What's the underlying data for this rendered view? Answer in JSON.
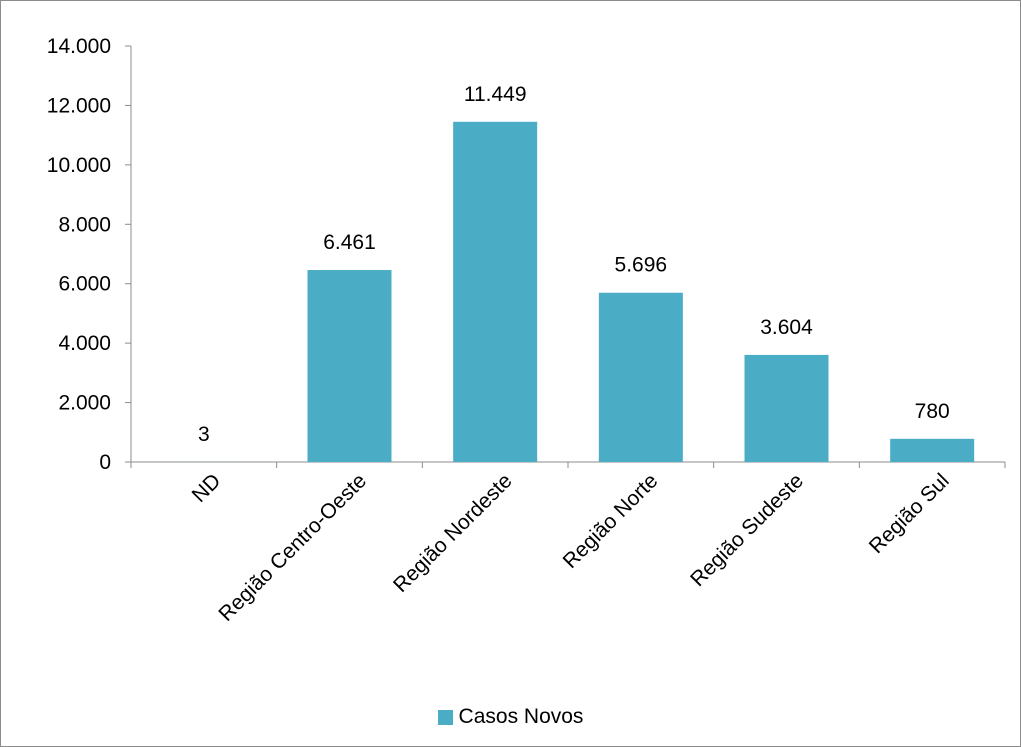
{
  "chart_data": {
    "type": "bar",
    "categories": [
      "ND",
      "Região Centro-Oeste",
      "Região Nordeste",
      "Região Norte",
      "Região Sudeste",
      "Região Sul"
    ],
    "series": [
      {
        "name": "Casos Novos",
        "values": [
          3,
          6461,
          11449,
          5696,
          3604,
          780
        ]
      }
    ],
    "data_labels": [
      "3",
      "6.461",
      "11.449",
      "5.696",
      "3.604",
      "780"
    ],
    "yticks": [
      "0",
      "2.000",
      "4.000",
      "6.000",
      "8.000",
      "10.000",
      "12.000",
      "14.000"
    ],
    "ylim": [
      0,
      14000
    ],
    "legend_position": "bottom",
    "grid": false,
    "colors": {
      "bar": "#4bacc6",
      "axis": "#8c8c8c"
    }
  }
}
